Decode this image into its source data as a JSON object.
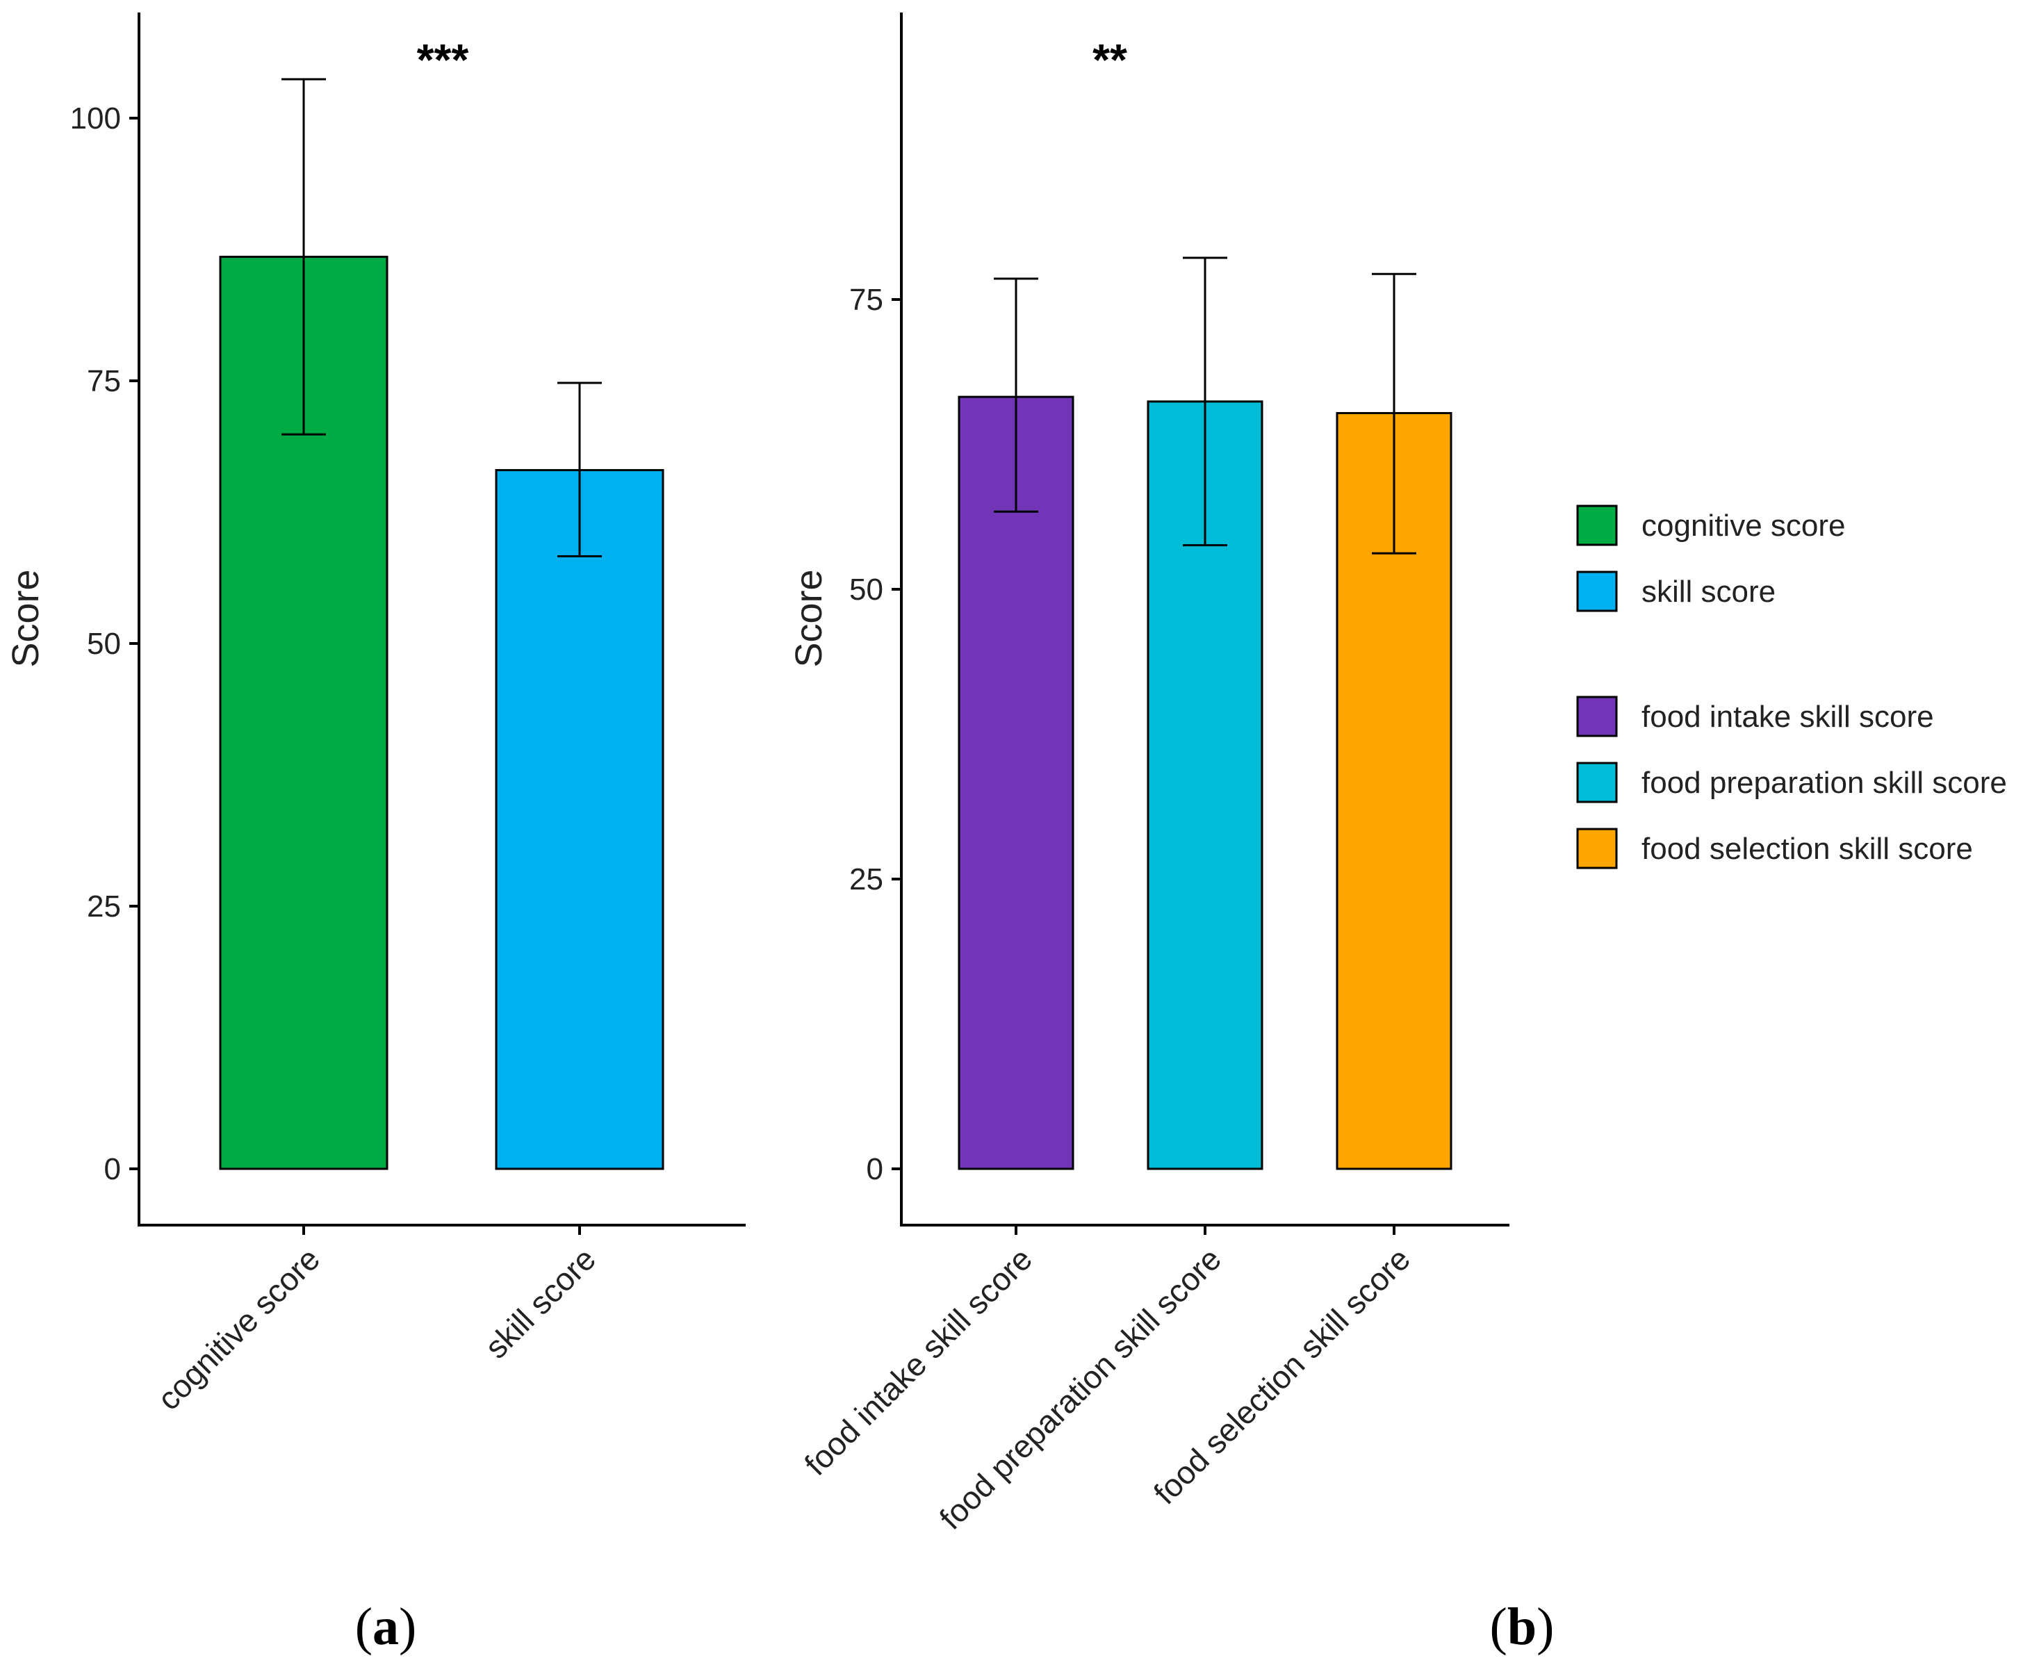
{
  "chart_data": [
    {
      "type": "bar",
      "panel_label": "a",
      "title": "",
      "xlabel": "",
      "ylabel": "Score",
      "ylim": [
        -5,
        110
      ],
      "yticks": [
        0,
        25,
        50,
        75,
        100
      ],
      "ytick_labels": [
        "0",
        "25",
        "50",
        "75",
        "100"
      ],
      "significance": "***",
      "grid": false,
      "categories": [
        "cognitive score",
        "skill score"
      ],
      "values": [
        86.8,
        66.5
      ],
      "error_low": [
        69.9,
        58.3
      ],
      "error_high": [
        103.7,
        74.8
      ],
      "colors": [
        "#00AA45",
        "#00B0F0"
      ]
    },
    {
      "type": "bar",
      "panel_label": "b",
      "title": "",
      "xlabel": "",
      "ylabel": "Score",
      "ylim": [
        -5,
        100
      ],
      "yticks": [
        0,
        25,
        50,
        75
      ],
      "ytick_labels": [
        "0",
        "25",
        "50",
        "75"
      ],
      "significance": "**",
      "grid": false,
      "categories": [
        "food intake skill score",
        "food preparation skill score",
        "food selection skill score"
      ],
      "values": [
        66.6,
        66.2,
        65.2
      ],
      "error_low": [
        56.7,
        53.8,
        53.1
      ],
      "error_high": [
        76.8,
        78.6,
        77.2
      ],
      "colors": [
        "#7335B8",
        "#00BCD6",
        "#FFA500"
      ]
    }
  ],
  "legend": {
    "position": "right",
    "groups": [
      [
        {
          "label": "cognitive score",
          "color": "#00AA45"
        },
        {
          "label": "skill score",
          "color": "#00B0F0"
        }
      ],
      [
        {
          "label": "food intake skill score",
          "color": "#7335B8"
        },
        {
          "label": "food preparation skill score",
          "color": "#00BCD6"
        },
        {
          "label": "food selection skill score",
          "color": "#FFA500"
        }
      ]
    ]
  }
}
